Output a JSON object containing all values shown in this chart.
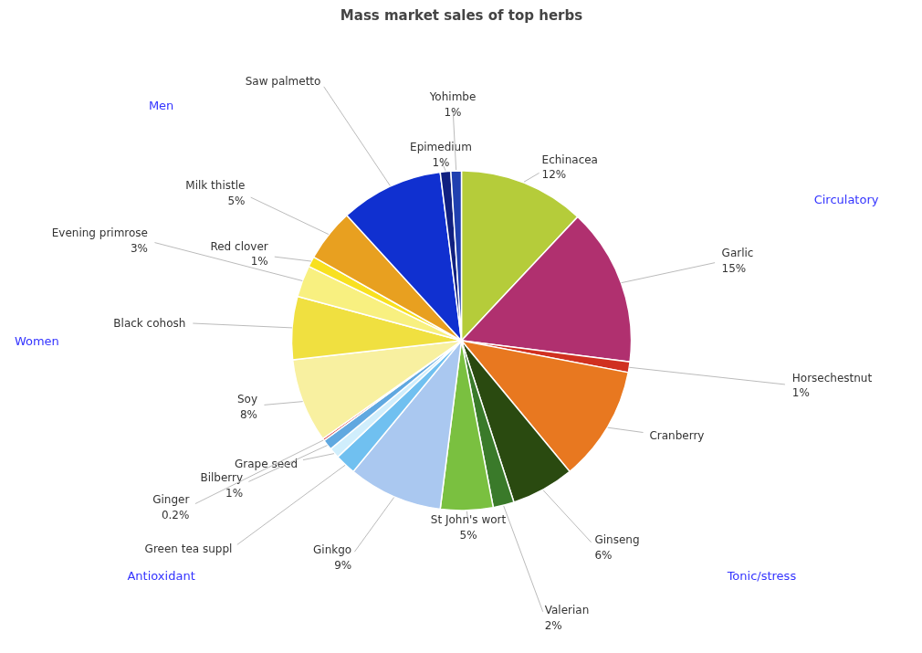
{
  "chart_data": {
    "type": "pie",
    "title": "Mass market sales of top herbs",
    "categories": [
      "Echinacea",
      "Garlic",
      "Horsechestnut",
      "Cranberry",
      "Ginseng",
      "Valerian",
      "St John's wort",
      "Ginkgo",
      "Green tea suppl",
      "Grape seed",
      "Bilberry",
      "Ginger",
      "Soy",
      "Black cohosh",
      "Evening primrose",
      "Red clover",
      "Milk thistle",
      "Saw palmetto",
      "Epimedium",
      "Yohimbe"
    ],
    "values": [
      12,
      15,
      1,
      11,
      6,
      2,
      5,
      9,
      2,
      1,
      1,
      0.2,
      8,
      6,
      3,
      1,
      5,
      9.8,
      1,
      1
    ],
    "value_labels": [
      "12%",
      "15%",
      "1%",
      null,
      "6%",
      "2%",
      "5%",
      "9%",
      null,
      null,
      "1%",
      "0.2%",
      "8%",
      null,
      "3%",
      "1%",
      "5%",
      null,
      "1%",
      "1%"
    ],
    "colors": [
      "#b5cc3a",
      "#b0306f",
      "#d03020",
      "#e87820",
      "#2a4a10",
      "#3a7a2a",
      "#7ac040",
      "#aac8f0",
      "#70c0f0",
      "#d0eefc",
      "#60a8e0",
      "#d02020",
      "#f8f0a0",
      "#f0e040",
      "#f8f080",
      "#f8e020",
      "#e8a020",
      "#1030d0",
      "#102080",
      "#2040b0"
    ],
    "annotations": [
      "Men",
      "Circulatory",
      "Tonic/stress",
      "Antioxidant",
      "Women"
    ]
  }
}
